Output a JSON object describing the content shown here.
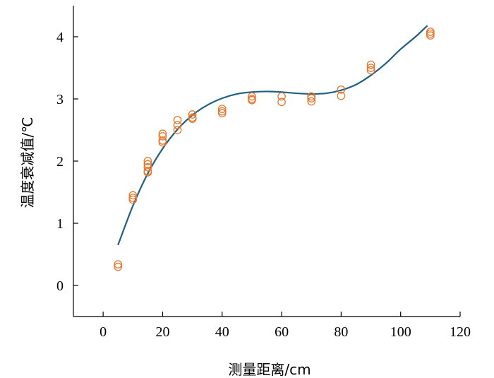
{
  "chart_data": {
    "type": "scatter",
    "xlabel": "测量距离/cm",
    "ylabel": "温度衰减值/℃",
    "xlim": [
      -10,
      120
    ],
    "ylim": [
      -0.5,
      4.5
    ],
    "xticks": [
      0,
      20,
      40,
      60,
      80,
      100,
      120
    ],
    "yticks": [
      0,
      1,
      2,
      3,
      4
    ],
    "grid": false,
    "series": [
      {
        "kind": "scatter",
        "marker": "open-circle",
        "color": "#e8772e",
        "points": [
          [
            5,
            0.34
          ],
          [
            5,
            0.3
          ],
          [
            10,
            1.45
          ],
          [
            10,
            1.41
          ],
          [
            10,
            1.38
          ],
          [
            15,
            2.0
          ],
          [
            15,
            1.95
          ],
          [
            15,
            1.9
          ],
          [
            15,
            1.84
          ],
          [
            15,
            1.82
          ],
          [
            20,
            2.44
          ],
          [
            20,
            2.4
          ],
          [
            20,
            2.33
          ],
          [
            20,
            2.3
          ],
          [
            25,
            2.66
          ],
          [
            25,
            2.58
          ],
          [
            25,
            2.5
          ],
          [
            30,
            2.75
          ],
          [
            30,
            2.7
          ],
          [
            30,
            2.68
          ],
          [
            40,
            2.84
          ],
          [
            40,
            2.8
          ],
          [
            40,
            2.77
          ],
          [
            50,
            3.04
          ],
          [
            50,
            3.0
          ],
          [
            50,
            2.98
          ],
          [
            60,
            3.04
          ],
          [
            60,
            2.95
          ],
          [
            70,
            3.04
          ],
          [
            70,
            3.01
          ],
          [
            70,
            2.96
          ],
          [
            80,
            3.15
          ],
          [
            80,
            3.05
          ],
          [
            90,
            3.55
          ],
          [
            90,
            3.5
          ],
          [
            90,
            3.46
          ],
          [
            110,
            4.08
          ],
          [
            110,
            4.05
          ],
          [
            110,
            4.02
          ]
        ]
      },
      {
        "kind": "line",
        "color": "#1f5f82",
        "x": [
          5,
          10,
          15,
          20,
          25,
          30,
          35,
          40,
          45,
          50,
          55,
          60,
          65,
          70,
          75,
          80,
          85,
          90,
          95,
          100,
          105,
          109
        ],
        "y": [
          0.65,
          1.28,
          1.8,
          2.2,
          2.51,
          2.74,
          2.9,
          3.01,
          3.08,
          3.11,
          3.12,
          3.11,
          3.09,
          3.08,
          3.09,
          3.14,
          3.23,
          3.38,
          3.57,
          3.8,
          4.0,
          4.18
        ]
      }
    ]
  }
}
